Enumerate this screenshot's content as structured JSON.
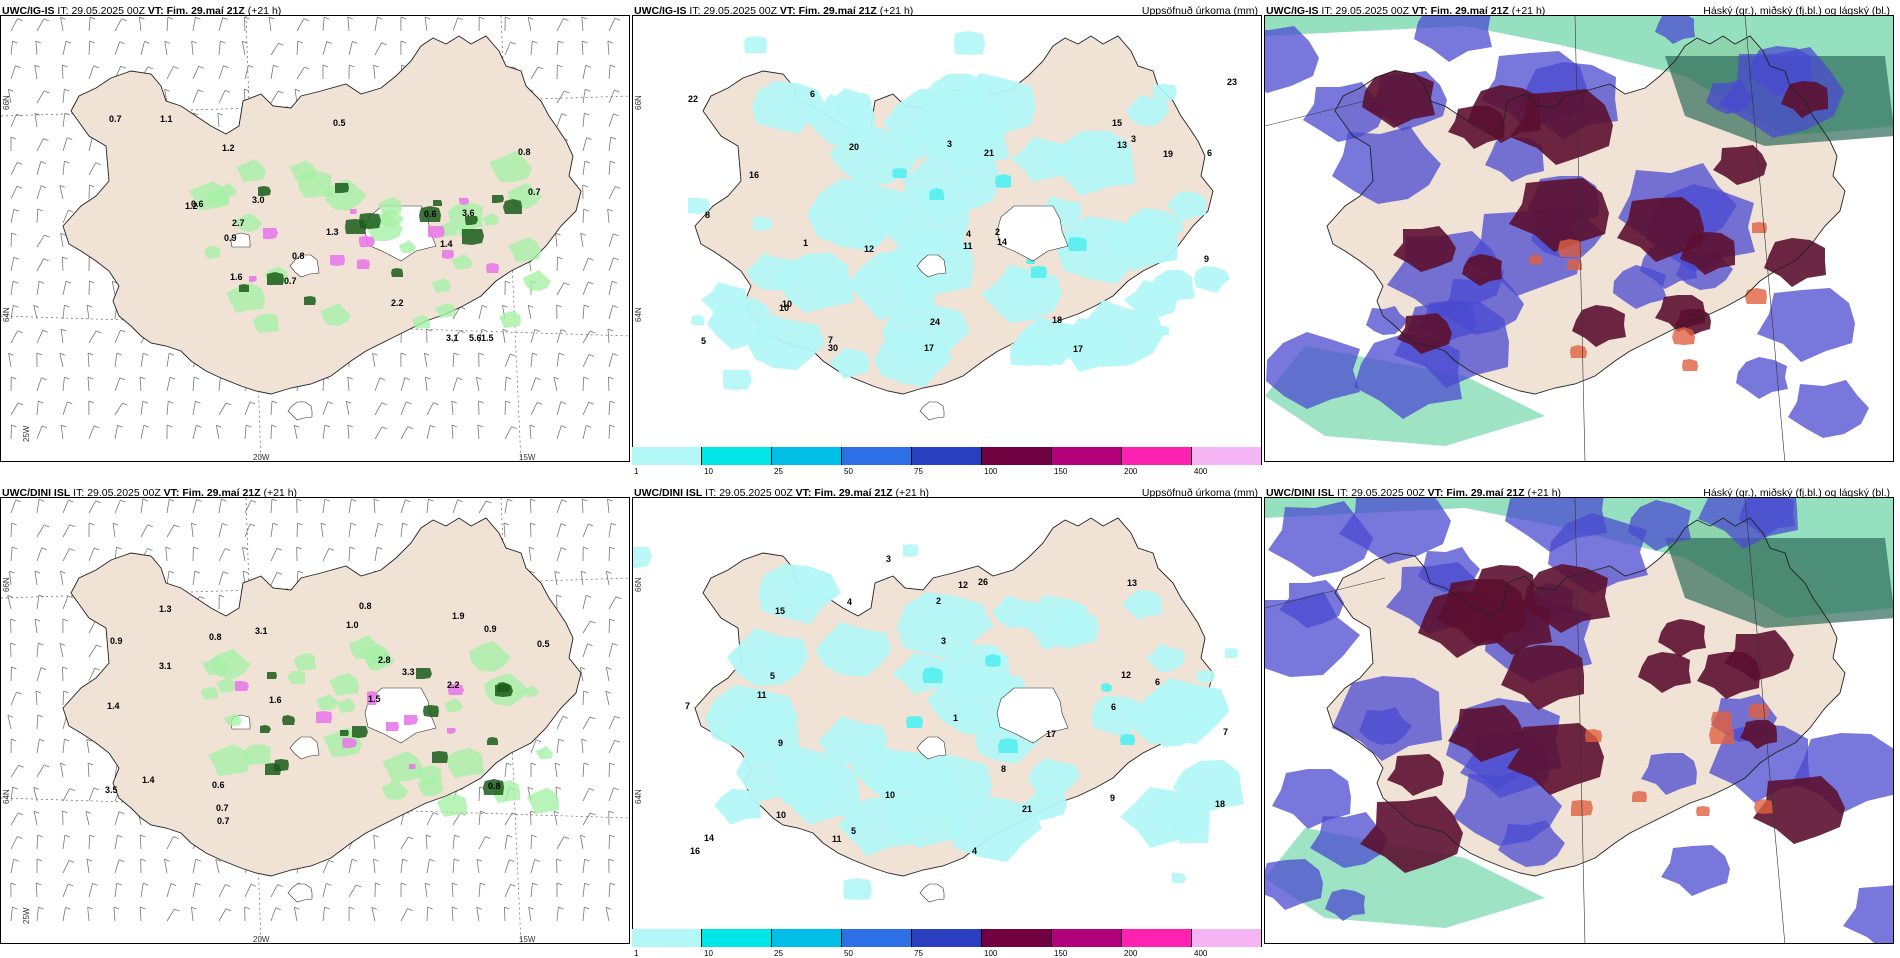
{
  "panels": [
    {
      "source": "UWC/IG-IS",
      "it_label": "IT:",
      "it": "29.05.2025 00Z",
      "vt_label": "VT:",
      "vt": "Fim. 29.maí 21Z",
      "lead": "(+21 h)",
      "title": "",
      "kind": "wind"
    },
    {
      "source": "UWC/IG-IS",
      "it_label": "IT:",
      "it": "29.05.2025 00Z",
      "vt_label": "VT:",
      "vt": "Fim. 29.maí 21Z",
      "lead": "(+21 h)",
      "title": "Uppsöfnuð úrkoma (mm)",
      "kind": "precip"
    },
    {
      "source": "UWC/IG-IS",
      "it_label": "IT:",
      "it": "29.05.2025 00Z",
      "vt_label": "VT:",
      "vt": "Fim. 29.maí 21Z",
      "lead": "(+21 h)",
      "title": "Háský (gr.), miðský (fj.bl.) og lágský (bl.)",
      "kind": "cloud"
    },
    {
      "source": "UWC/DINI ISL",
      "it_label": "IT:",
      "it": "29.05.2025 00Z",
      "vt_label": "VT:",
      "vt": "Fim. 29.maí 21Z",
      "lead": "(+21 h)",
      "title": "",
      "kind": "wind"
    },
    {
      "source": "UWC/DINI ISL",
      "it_label": "IT:",
      "it": "29.05.2025 00Z",
      "vt_label": "VT:",
      "vt": "Fim. 29.maí 21Z",
      "lead": "(+21 h)",
      "title": "Uppsöfnuð úrkoma (mm)",
      "kind": "precip"
    },
    {
      "source": "UWC/DINI ISL",
      "it_label": "IT:",
      "it": "29.05.2025 00Z",
      "vt_label": "VT:",
      "vt": "Fim. 29.maí 21Z",
      "lead": "(+21 h)",
      "title": "Háský (gr.), miðský (fj.bl.) og lágský (bl.)",
      "kind": "cloud"
    }
  ],
  "axis_labels": {
    "lat1": "66N",
    "lat2": "64N",
    "lat3": "25W",
    "lon1": "20W",
    "lon2": "15W"
  },
  "colorbar": {
    "ticks": [
      "1",
      "10",
      "25",
      "50",
      "75",
      "100",
      "150",
      "200",
      "400"
    ],
    "colors": [
      "#b3f7f7",
      "#00e6e6",
      "#00bfe6",
      "#2e6fe6",
      "#2a3fbf",
      "#700040",
      "#b0007a",
      "#ff22b0",
      "#f5b5f5"
    ]
  },
  "precip_values": {
    "top": [
      "5",
      "3",
      "9",
      "17",
      "13",
      "10",
      "6",
      "23",
      "24",
      "19",
      "17",
      "22",
      "21",
      "20",
      "7",
      "12",
      "16",
      "11",
      "14",
      "4",
      "8",
      "2",
      "15",
      "30",
      "18",
      "1",
      "3",
      "10",
      "6"
    ],
    "bottom": [
      "5",
      "10",
      "9",
      "7",
      "15",
      "18",
      "17",
      "14",
      "12",
      "3",
      "11",
      "21",
      "26",
      "13",
      "6",
      "2",
      "4",
      "8",
      "1",
      "16",
      "10",
      "7",
      "5",
      "12",
      "9",
      "3",
      "11",
      "4",
      "6"
    ]
  },
  "wind_values": {
    "top": [
      "0.8",
      "1.2",
      "1.1",
      "1.4",
      "1.5",
      "1.2",
      "0.7",
      "0.9",
      "1.6",
      "0.6",
      "3.6",
      "0.5",
      "0.7",
      "3.1",
      "2.7",
      "2.2",
      "1.3",
      "0.7",
      "0.8",
      "3.0",
      "5.6",
      "0.6"
    ],
    "bottom": [
      "1.0",
      "0.8",
      "0.5",
      "3.1",
      "0.7",
      "0.9",
      "1.3",
      "1.6",
      "2.8",
      "0.8",
      "0.7",
      "1.4",
      "3.5",
      "0.6",
      "1.9",
      "2.2",
      "3.3",
      "1.4",
      "0.9",
      "0.8",
      "3.1",
      "1.5"
    ]
  },
  "colors": {
    "land": "#f0e3d6",
    "coast": "#222222",
    "precip_light": "#b3f7f7",
    "precip_mid": "#5ef0f0",
    "green_light": "#a6f0a6",
    "green_dark": "#1a5c1a",
    "magenta": "#e87ae8",
    "cloud_high": "#5c1030",
    "cloud_mid": "#4a4ad0",
    "cloud_low": "#3ec98a",
    "grid": "#555555"
  }
}
